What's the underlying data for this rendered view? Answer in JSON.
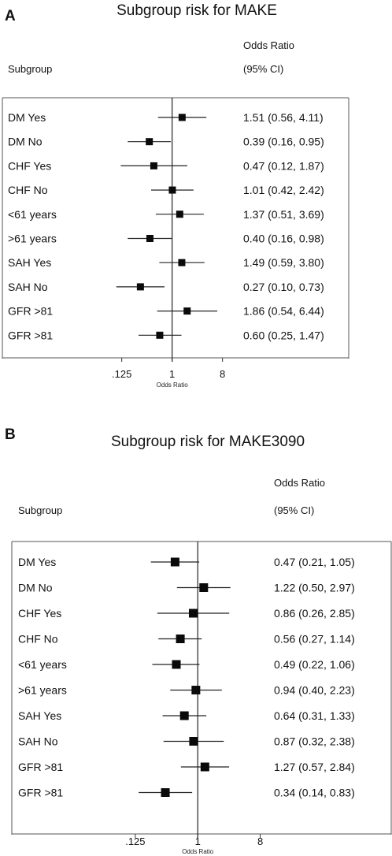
{
  "chart_data": [
    {
      "panel": "A",
      "type": "forest",
      "title": "Subgroup risk for MAKE",
      "header_subgroup": "Subgroup",
      "header_or_line1": "Odds Ratio",
      "header_or_line2": "(95% CI)",
      "xlabel": "Odds Ratio",
      "x_scale": "log2",
      "xlim": [
        0.03125,
        16
      ],
      "x_ticks": [
        {
          "value": 0.125,
          "label": ".125"
        },
        {
          "value": 1,
          "label": "1"
        },
        {
          "value": 8,
          "label": "8"
        }
      ],
      "reference_line": 1,
      "rows": [
        {
          "label": "DM Yes",
          "or": 1.51,
          "lo": 0.56,
          "hi": 4.11,
          "text": "1.51 (0.56, 4.11)"
        },
        {
          "label": "DM No",
          "or": 0.39,
          "lo": 0.16,
          "hi": 0.95,
          "text": "0.39 (0.16, 0.95)"
        },
        {
          "label": "CHF Yes",
          "or": 0.47,
          "lo": 0.12,
          "hi": 1.87,
          "text": "0.47 (0.12, 1.87)"
        },
        {
          "label": "CHF No",
          "or": 1.01,
          "lo": 0.42,
          "hi": 2.42,
          "text": "1.01 (0.42, 2.42)"
        },
        {
          "label": "<61 years",
          "or": 1.37,
          "lo": 0.51,
          "hi": 3.69,
          "text": "1.37 (0.51, 3.69)"
        },
        {
          "label": ">61 years",
          "or": 0.4,
          "lo": 0.16,
          "hi": 0.98,
          "text": "0.40 (0.16, 0.98)"
        },
        {
          "label": "SAH Yes",
          "or": 1.49,
          "lo": 0.59,
          "hi": 3.8,
          "text": "1.49 (0.59, 3.80)"
        },
        {
          "label": "SAH No",
          "or": 0.27,
          "lo": 0.1,
          "hi": 0.73,
          "text": "0.27 (0.10, 0.73)"
        },
        {
          "label": "GFR >81",
          "or": 1.86,
          "lo": 0.54,
          "hi": 6.44,
          "text": "1.86 (0.54, 6.44)"
        },
        {
          "label": "GFR >81",
          "or": 0.6,
          "lo": 0.25,
          "hi": 1.47,
          "text": "0.60 (0.25, 1.47)"
        }
      ]
    },
    {
      "panel": "B",
      "type": "forest",
      "title": "Subgroup risk for MAKE3090",
      "header_subgroup": "Subgroup",
      "header_or_line1": "Odds Ratio",
      "header_or_line2": "(95% CI)",
      "xlabel": "Odds Ratio",
      "x_scale": "log2",
      "xlim": [
        0.03125,
        16
      ],
      "x_ticks": [
        {
          "value": 0.125,
          "label": ".125"
        },
        {
          "value": 1,
          "label": "1"
        },
        {
          "value": 8,
          "label": "8"
        }
      ],
      "reference_line": 1,
      "rows": [
        {
          "label": "DM Yes",
          "or": 0.47,
          "lo": 0.21,
          "hi": 1.05,
          "text": "0.47 (0.21, 1.05)"
        },
        {
          "label": "DM No",
          "or": 1.22,
          "lo": 0.5,
          "hi": 2.97,
          "text": "1.22 (0.50, 2.97)"
        },
        {
          "label": "CHF Yes",
          "or": 0.86,
          "lo": 0.26,
          "hi": 2.85,
          "text": "0.86 (0.26, 2.85)"
        },
        {
          "label": "CHF No",
          "or": 0.56,
          "lo": 0.27,
          "hi": 1.14,
          "text": "0.56 (0.27, 1.14)"
        },
        {
          "label": "<61 years",
          "or": 0.49,
          "lo": 0.22,
          "hi": 1.06,
          "text": "0.49 (0.22, 1.06)"
        },
        {
          "label": ">61 years",
          "or": 0.94,
          "lo": 0.4,
          "hi": 2.23,
          "text": "0.94 (0.40, 2.23)"
        },
        {
          "label": "SAH Yes",
          "or": 0.64,
          "lo": 0.31,
          "hi": 1.33,
          "text": "0.64 (0.31, 1.33)"
        },
        {
          "label": "SAH No",
          "or": 0.87,
          "lo": 0.32,
          "hi": 2.38,
          "text": "0.87 (0.32, 2.38)"
        },
        {
          "label": "GFR >81",
          "or": 1.27,
          "lo": 0.57,
          "hi": 2.84,
          "text": "1.27 (0.57, 2.84)"
        },
        {
          "label": "GFR >81",
          "or": 0.34,
          "lo": 0.14,
          "hi": 0.83,
          "text": "0.34 (0.14, 0.83)"
        }
      ]
    }
  ]
}
